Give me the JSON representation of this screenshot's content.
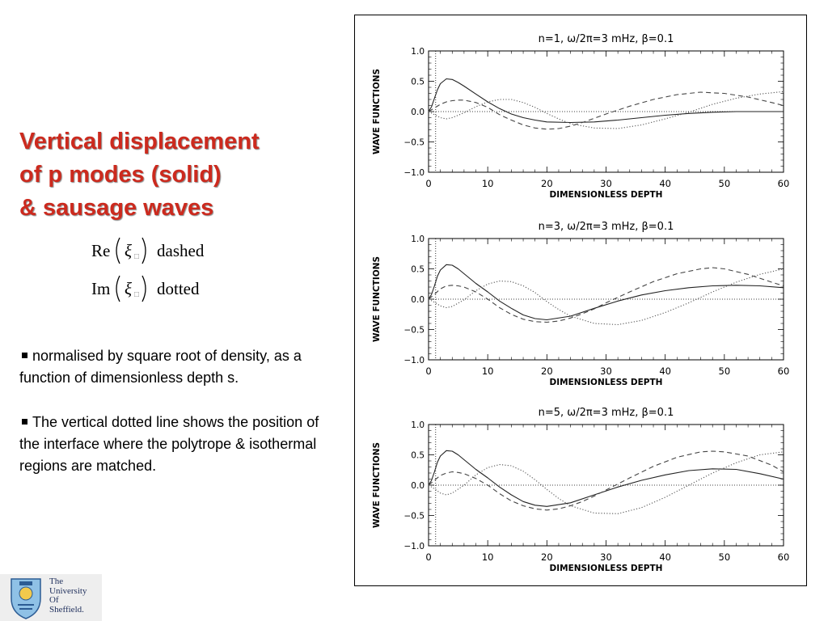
{
  "slide": {
    "title_lines": [
      "Vertical displacement",
      "of p modes (solid)",
      "& sausage waves"
    ],
    "legend_formulas": [
      {
        "op": "Re",
        "symbol": "ξ",
        "label": "dashed"
      },
      {
        "op": "Im",
        "symbol": "ξ",
        "label": "dotted"
      }
    ],
    "bullets": [
      "normalised by square root of density, as a function of dimensionless depth s.",
      "The vertical dotted line shows the position of the interface where the polytrope & isothermal regions are matched."
    ],
    "logo_text": [
      "The",
      "University",
      "Of",
      "Sheffield."
    ]
  },
  "chart_data": [
    {
      "type": "line",
      "title": "n=1,  ω/2π=3  mHz,  β=0.1",
      "xlabel": "DIMENSIONLESS DEPTH",
      "ylabel": "WAVE FUNCTIONS",
      "xlim": [
        0,
        60
      ],
      "ylim": [
        -1.0,
        1.0
      ],
      "xticks": [
        "0",
        "10",
        "20",
        "30",
        "40",
        "50",
        "60"
      ],
      "yticks": [
        "1.0",
        "0.5",
        "0.0",
        "−0.5",
        "−1.0"
      ],
      "interface_x": 1.2,
      "zero_line": true,
      "series": [
        {
          "style": "solid",
          "x": [
            0,
            0.5,
            1,
            1.5,
            2,
            3,
            4,
            5,
            6,
            8,
            10,
            12,
            14,
            16,
            18,
            20,
            24,
            28,
            32,
            36,
            40,
            44,
            48,
            52,
            56,
            60
          ],
          "y": [
            0,
            0.08,
            0.22,
            0.36,
            0.46,
            0.54,
            0.53,
            0.48,
            0.42,
            0.29,
            0.16,
            0.05,
            -0.04,
            -0.1,
            -0.14,
            -0.17,
            -0.18,
            -0.17,
            -0.14,
            -0.1,
            -0.06,
            -0.03,
            -0.01,
            0,
            0,
            0
          ]
        },
        {
          "style": "dashed",
          "x": [
            0,
            1,
            2,
            3,
            4,
            5,
            6,
            8,
            10,
            12,
            14,
            16,
            18,
            20,
            22,
            24,
            26,
            28,
            30,
            34,
            38,
            42,
            46,
            48,
            50,
            54,
            58,
            60
          ],
          "y": [
            0,
            0.06,
            0.12,
            0.16,
            0.18,
            0.19,
            0.19,
            0.15,
            0.07,
            -0.05,
            -0.14,
            -0.22,
            -0.27,
            -0.29,
            -0.28,
            -0.24,
            -0.18,
            -0.11,
            -0.04,
            0.09,
            0.2,
            0.28,
            0.32,
            0.31,
            0.3,
            0.24,
            0.15,
            0.1
          ]
        },
        {
          "style": "dotted",
          "x": [
            0,
            1,
            2,
            3,
            4,
            6,
            8,
            10,
            12,
            14,
            16,
            18,
            20,
            22,
            24,
            28,
            32,
            36,
            40,
            44,
            48,
            52,
            56,
            60
          ],
          "y": [
            0,
            -0.05,
            -0.1,
            -0.12,
            -0.1,
            -0.02,
            0.08,
            0.16,
            0.2,
            0.2,
            0.15,
            0.07,
            -0.03,
            -0.12,
            -0.2,
            -0.27,
            -0.28,
            -0.22,
            -0.12,
            -0.01,
            0.12,
            0.22,
            0.29,
            0.33
          ]
        }
      ]
    },
    {
      "type": "line",
      "title": "n=3,  ω/2π=3  mHz,  β=0.1",
      "xlabel": "DIMENSIONLESS DEPTH",
      "ylabel": "WAVE FUNCTIONS",
      "xlim": [
        0,
        60
      ],
      "ylim": [
        -1.0,
        1.0
      ],
      "xticks": [
        "0",
        "10",
        "20",
        "30",
        "40",
        "50",
        "60"
      ],
      "yticks": [
        "1.0",
        "0.5",
        "0.0",
        "−0.5",
        "−1.0"
      ],
      "interface_x": 1.2,
      "zero_line": true,
      "series": [
        {
          "style": "solid",
          "x": [
            0,
            0.5,
            1,
            1.5,
            2,
            3,
            4,
            5,
            6,
            8,
            10,
            12,
            14,
            16,
            18,
            20,
            24,
            28,
            32,
            36,
            40,
            44,
            48,
            52,
            56,
            60
          ],
          "y": [
            0,
            0.08,
            0.22,
            0.38,
            0.48,
            0.57,
            0.56,
            0.5,
            0.42,
            0.26,
            0.12,
            -0.03,
            -0.15,
            -0.26,
            -0.32,
            -0.34,
            -0.28,
            -0.15,
            -0.03,
            0.07,
            0.14,
            0.19,
            0.22,
            0.23,
            0.22,
            0.19
          ]
        },
        {
          "style": "dashed",
          "x": [
            0,
            1,
            2,
            3,
            4,
            5,
            6,
            8,
            10,
            12,
            14,
            16,
            18,
            20,
            22,
            24,
            26,
            28,
            30,
            34,
            38,
            42,
            46,
            48,
            50,
            54,
            58,
            60
          ],
          "y": [
            0,
            0.08,
            0.17,
            0.22,
            0.23,
            0.22,
            0.2,
            0.12,
            0.0,
            -0.14,
            -0.25,
            -0.33,
            -0.37,
            -0.38,
            -0.36,
            -0.31,
            -0.24,
            -0.16,
            -0.06,
            0.12,
            0.29,
            0.42,
            0.5,
            0.52,
            0.5,
            0.41,
            0.28,
            0.22
          ]
        },
        {
          "style": "dotted",
          "x": [
            0,
            1,
            2,
            3,
            4,
            6,
            8,
            10,
            12,
            14,
            16,
            18,
            20,
            22,
            24,
            28,
            32,
            36,
            40,
            44,
            48,
            52,
            56,
            60
          ],
          "y": [
            0,
            -0.05,
            -0.11,
            -0.14,
            -0.12,
            -0.01,
            0.14,
            0.25,
            0.3,
            0.29,
            0.22,
            0.11,
            -0.04,
            -0.17,
            -0.28,
            -0.4,
            -0.42,
            -0.35,
            -0.22,
            -0.06,
            0.12,
            0.28,
            0.41,
            0.5
          ]
        }
      ]
    },
    {
      "type": "line",
      "title": "n=5,  ω/2π=3  mHz,  β=0.1",
      "xlabel": "DIMENSIONLESS DEPTH",
      "ylabel": "WAVE FUNCTIONS",
      "xlim": [
        0,
        60
      ],
      "ylim": [
        -1.0,
        1.0
      ],
      "xticks": [
        "0",
        "10",
        "20",
        "30",
        "40",
        "50",
        "60"
      ],
      "yticks": [
        "1.0",
        "0.5",
        "0.0",
        "−0.5",
        "−1.0"
      ],
      "interface_x": 1.2,
      "zero_line": true,
      "series": [
        {
          "style": "solid",
          "x": [
            0,
            0.5,
            1,
            1.5,
            2,
            3,
            4,
            5,
            6,
            8,
            10,
            12,
            14,
            16,
            18,
            20,
            24,
            28,
            32,
            36,
            40,
            44,
            48,
            52,
            56,
            60
          ],
          "y": [
            0,
            0.08,
            0.22,
            0.38,
            0.48,
            0.57,
            0.56,
            0.5,
            0.42,
            0.26,
            0.12,
            -0.03,
            -0.16,
            -0.27,
            -0.33,
            -0.35,
            -0.29,
            -0.16,
            -0.03,
            0.08,
            0.17,
            0.24,
            0.27,
            0.26,
            0.19,
            0.1
          ]
        },
        {
          "style": "dashed",
          "x": [
            0,
            1,
            2,
            3,
            4,
            5,
            6,
            8,
            10,
            12,
            14,
            16,
            18,
            20,
            22,
            24,
            26,
            28,
            30,
            34,
            38,
            42,
            46,
            48,
            50,
            54,
            58,
            60
          ],
          "y": [
            0,
            0.08,
            0.16,
            0.2,
            0.22,
            0.21,
            0.19,
            0.11,
            0.0,
            -0.14,
            -0.26,
            -0.34,
            -0.39,
            -0.41,
            -0.39,
            -0.34,
            -0.27,
            -0.18,
            -0.08,
            0.12,
            0.31,
            0.46,
            0.55,
            0.56,
            0.55,
            0.48,
            0.33,
            0.22
          ]
        },
        {
          "style": "dotted",
          "x": [
            0,
            1,
            2,
            3,
            4,
            6,
            8,
            10,
            12,
            14,
            16,
            18,
            20,
            22,
            24,
            28,
            32,
            36,
            40,
            44,
            48,
            52,
            56,
            60
          ],
          "y": [
            0,
            -0.06,
            -0.13,
            -0.16,
            -0.13,
            0.0,
            0.17,
            0.29,
            0.34,
            0.32,
            0.23,
            0.09,
            -0.07,
            -0.22,
            -0.34,
            -0.46,
            -0.47,
            -0.37,
            -0.2,
            0.0,
            0.2,
            0.37,
            0.5,
            0.55
          ]
        }
      ]
    }
  ]
}
